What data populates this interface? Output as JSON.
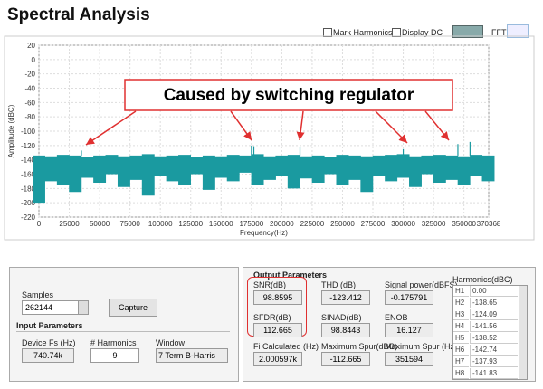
{
  "header": {
    "title": "Spectral Analysis",
    "mark_harmonics": "Mark Harmonics",
    "display_dc": "Display DC",
    "fft": "FFT"
  },
  "chart_data": {
    "type": "band",
    "y_label": "Amplitude (dBC)",
    "x_label": "Frequency(Hz)",
    "annotation": "Caused by switching regulator",
    "color": "#1a9aa0",
    "annotation_color": "#e03030",
    "xlim": [
      0,
      370368
    ],
    "xticks": [
      0,
      25000,
      50000,
      75000,
      100000,
      125000,
      150000,
      175000,
      200000,
      225000,
      250000,
      275000,
      300000,
      325000,
      350000,
      370368
    ],
    "ylim": [
      -220,
      20
    ],
    "yticks": [
      20,
      0,
      -20,
      -40,
      -60,
      -80,
      -100,
      -120,
      -140,
      -160,
      -180,
      -200,
      -220
    ],
    "grid": true,
    "x": [
      0,
      10000,
      20000,
      30000,
      40000,
      50000,
      60000,
      70000,
      80000,
      90000,
      100000,
      110000,
      120000,
      130000,
      140000,
      150000,
      160000,
      170000,
      180000,
      190000,
      200000,
      210000,
      220000,
      230000,
      240000,
      250000,
      260000,
      270000,
      280000,
      290000,
      300000,
      310000,
      320000,
      330000,
      340000,
      350000,
      360000,
      370000
    ],
    "noise_top": [
      -134,
      -135,
      -133,
      -134,
      -136,
      -134,
      -133,
      -135,
      -134,
      -132,
      -135,
      -134,
      -133,
      -136,
      -134,
      -135,
      -133,
      -134,
      -132,
      -135,
      -134,
      -133,
      -135,
      -134,
      -136,
      -133,
      -134,
      -135,
      -134,
      -133,
      -132,
      -135,
      -134,
      -133,
      -134,
      -135,
      -133,
      -134
    ],
    "noise_bottom": [
      -200,
      -170,
      -175,
      -185,
      -165,
      -172,
      -160,
      -178,
      -168,
      -190,
      -163,
      -170,
      -175,
      -160,
      -182,
      -165,
      -170,
      -158,
      -175,
      -168,
      -162,
      -180,
      -166,
      -172,
      -160,
      -175,
      -168,
      -185,
      -162,
      -170,
      -165,
      -178,
      -160,
      -172,
      -168,
      -175,
      -163,
      -170
    ],
    "spurs": {
      "x": [
        35000,
        175000,
        177000,
        215000,
        300000,
        345000,
        355000
      ],
      "values": [
        -127,
        -120,
        -121,
        -122,
        -125,
        -118,
        -115
      ]
    }
  },
  "input": {
    "samples_label": "Samples",
    "samples": "262144",
    "capture": "Capture",
    "heading": "Input Parameters",
    "fs_label": "Device Fs (Hz)",
    "fs": "740.74k",
    "harmonics_label": "# Harmonics",
    "harmonics": "9",
    "window_label": "Window",
    "window": "7 Term B-Harris"
  },
  "output": {
    "heading": "Output Parameters",
    "fields": [
      {
        "label": "SNR(dB)",
        "value": "98.8595"
      },
      {
        "label": "THD (dB)",
        "value": "-123.412"
      },
      {
        "label": "Signal power(dBFS)",
        "value": "-0.175791"
      },
      {
        "label": "SFDR(dB)",
        "value": "112.665"
      },
      {
        "label": "SINAD(dB)",
        "value": "98.8443"
      },
      {
        "label": "ENOB",
        "value": "16.127"
      },
      {
        "label": "Fi Calculated (Hz)",
        "value": "2.000597k"
      },
      {
        "label": "Maximum Spur(dBC)",
        "value": "-112.665"
      },
      {
        "label": "Maximum Spur (Hz)",
        "value": "351594"
      }
    ],
    "harmonics_label": "Harmonics(dBC)",
    "harmonics": [
      [
        "H1",
        "0.00"
      ],
      [
        "H2",
        "-138.65"
      ],
      [
        "H3",
        "-124.09"
      ],
      [
        "H4",
        "-141.56"
      ],
      [
        "H5",
        "-138.52"
      ],
      [
        "H6",
        "-142.74"
      ],
      [
        "H7",
        "-137.93"
      ],
      [
        "H8",
        "-141.83"
      ]
    ]
  }
}
